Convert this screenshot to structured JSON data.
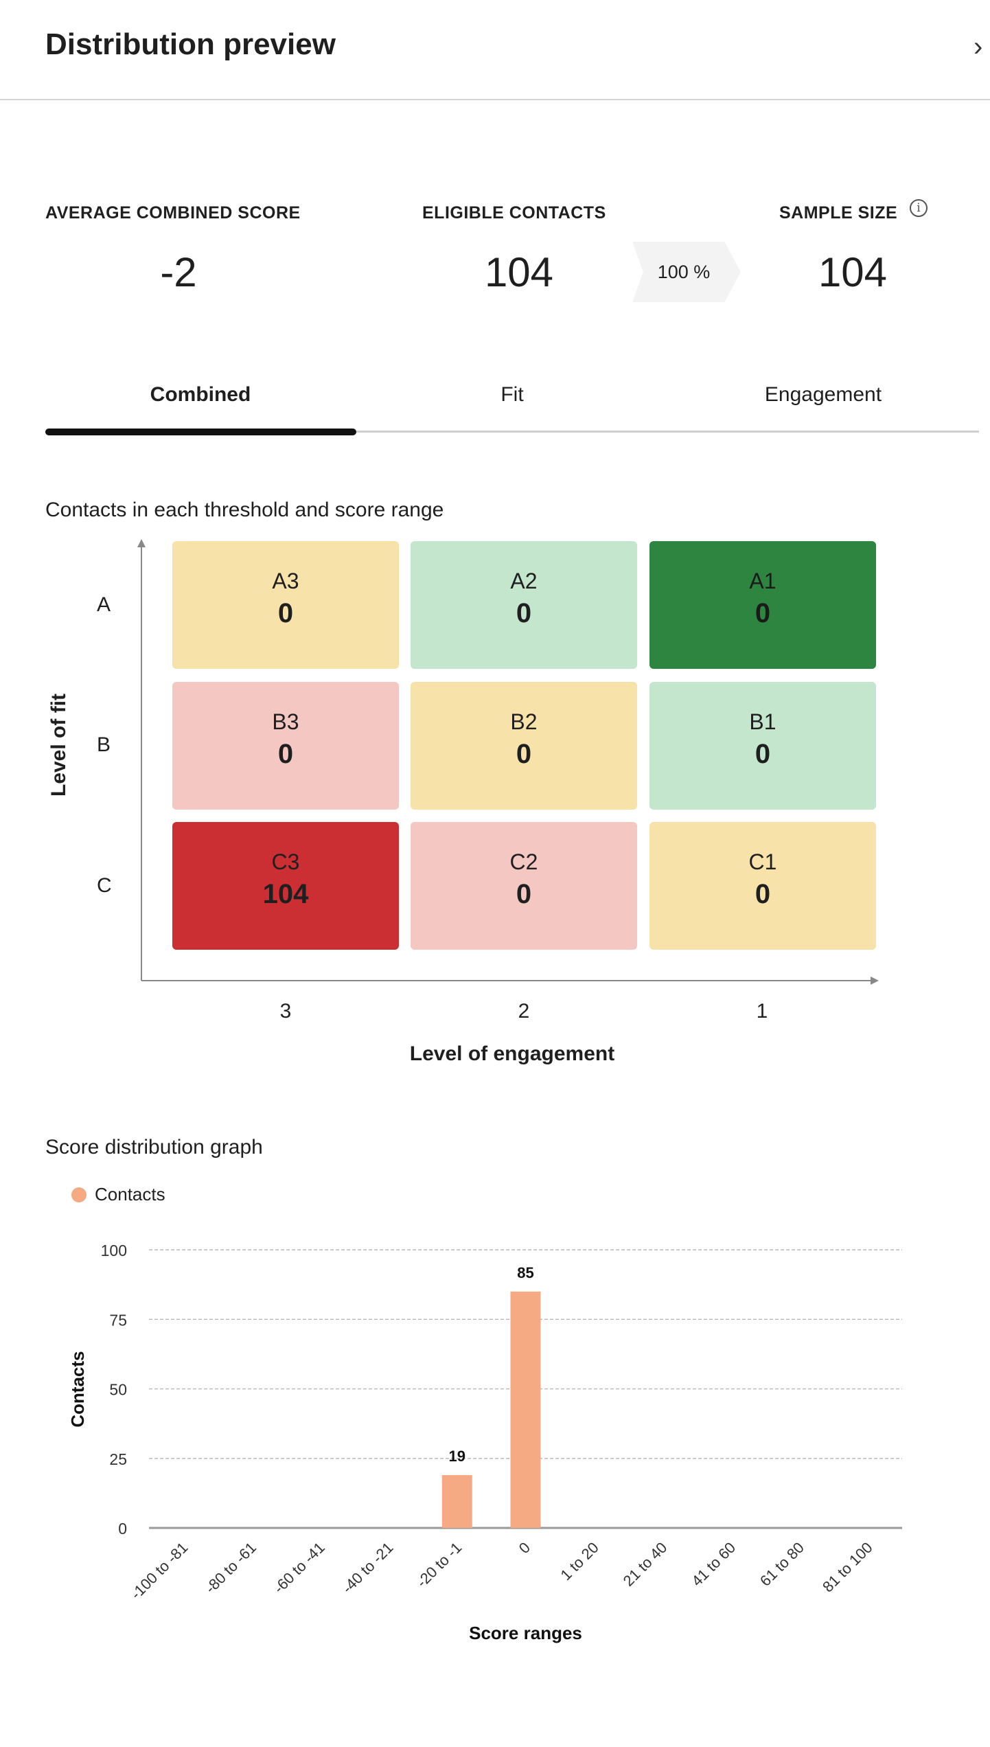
{
  "header": {
    "title": "Distribution preview",
    "close_icon": "chevron-right-icon"
  },
  "stats": {
    "avg_label": "AVERAGE COMBINED SCORE",
    "avg_value": "-2",
    "eligible_label": "ELIGIBLE CONTACTS",
    "eligible_value": "104",
    "percent": "100 %",
    "sample_label": "SAMPLE SIZE",
    "sample_value": "104",
    "info_icon": "info-icon"
  },
  "tabs": [
    {
      "label": "Combined",
      "active": true
    },
    {
      "label": "Fit",
      "active": false
    },
    {
      "label": "Engagement",
      "active": false
    }
  ],
  "matrix": {
    "title": "Contacts in each threshold and score range",
    "rows": [
      "A",
      "B",
      "C"
    ],
    "columns": [
      "3",
      "2",
      "1"
    ],
    "x_label": "Level of engagement",
    "y_label": "Level of fit",
    "cells": [
      [
        {
          "label": "A3",
          "value": "0",
          "color": "#f7e2aa"
        },
        {
          "label": "A2",
          "value": "0",
          "color": "#c3e6cd"
        },
        {
          "label": "A1",
          "value": "0",
          "color": "#2e8540"
        }
      ],
      [
        {
          "label": "B3",
          "value": "0",
          "color": "#f5c7c2"
        },
        {
          "label": "B2",
          "value": "0",
          "color": "#f7e2aa"
        },
        {
          "label": "B1",
          "value": "0",
          "color": "#c3e6cd"
        }
      ],
      [
        {
          "label": "C3",
          "value": "104",
          "color": "#cc2f33"
        },
        {
          "label": "C2",
          "value": "0",
          "color": "#f5c7c2"
        },
        {
          "label": "C1",
          "value": "0",
          "color": "#f7e2aa"
        }
      ]
    ]
  },
  "chart_title": "Score distribution graph",
  "chart_data": {
    "type": "bar",
    "legend": "top-left",
    "series": [
      {
        "name": "Contacts",
        "color": "#f5aa84",
        "values": [
          0,
          0,
          0,
          0,
          19,
          85,
          0,
          0,
          0,
          0,
          0
        ]
      }
    ],
    "categories": [
      "-100 to -81",
      "-80 to -61",
      "-60 to -41",
      "-40 to -21",
      "-20 to -1",
      "0",
      "1 to 20",
      "21 to 40",
      "41 to 60",
      "61 to 80",
      "81 to 100"
    ],
    "data_labels": [
      "",
      "",
      "",
      "",
      "19",
      "85",
      "",
      "",
      "",
      "",
      ""
    ],
    "yticks": [
      "0",
      "25",
      "50",
      "75",
      "100"
    ],
    "ylim": [
      0,
      100
    ],
    "xlabel": "Score ranges",
    "ylabel": "Contacts",
    "grid": true
  }
}
